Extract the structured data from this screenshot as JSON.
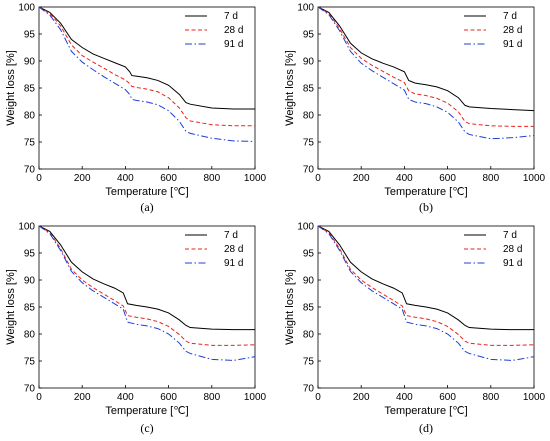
{
  "chart_data": [
    {
      "type": "line",
      "panel_label": "(a)",
      "xlabel": "Temperature [℃]",
      "ylabel": "Weight loss [%]",
      "xlim": [
        0,
        1000
      ],
      "ylim": [
        70,
        100
      ],
      "xticks": [
        0,
        200,
        400,
        600,
        800,
        1000
      ],
      "yticks": [
        70,
        75,
        80,
        85,
        90,
        95,
        100
      ],
      "legend_position": "top-right",
      "series": [
        {
          "name": "7 d",
          "color": "#000000",
          "dash": "solid",
          "x": [
            0,
            50,
            100,
            150,
            200,
            250,
            300,
            350,
            400,
            420,
            430,
            450,
            500,
            550,
            600,
            650,
            680,
            700,
            800,
            900,
            1000
          ],
          "y": [
            100,
            99,
            97,
            94,
            92.5,
            91.3,
            90.5,
            89.7,
            88.9,
            88.0,
            87.3,
            87.2,
            86.9,
            86.4,
            85.5,
            83.8,
            82.3,
            82.0,
            81.3,
            81.1,
            81.1
          ]
        },
        {
          "name": "28 d",
          "color": "#e8231d",
          "dash": "dashed",
          "x": [
            0,
            50,
            100,
            150,
            200,
            250,
            300,
            350,
            400,
            420,
            430,
            450,
            500,
            550,
            600,
            650,
            680,
            700,
            800,
            900,
            1000
          ],
          "y": [
            100,
            98.8,
            96.5,
            93.0,
            91.0,
            89.8,
            88.7,
            87.5,
            86.5,
            85.8,
            85.3,
            85.1,
            84.8,
            84.3,
            83.2,
            81.3,
            79.5,
            78.9,
            78.2,
            78.0,
            78.0
          ]
        },
        {
          "name": "91 d",
          "color": "#1f3fd6",
          "dash": "dashdot",
          "x": [
            0,
            50,
            100,
            150,
            200,
            250,
            300,
            350,
            400,
            420,
            430,
            450,
            500,
            550,
            600,
            650,
            680,
            700,
            800,
            900,
            1000
          ],
          "y": [
            100,
            98.5,
            95.8,
            91.8,
            89.8,
            88.4,
            87.1,
            85.9,
            84.7,
            83.8,
            82.9,
            82.7,
            82.4,
            81.9,
            80.8,
            78.8,
            77.0,
            76.6,
            75.7,
            75.2,
            75.1
          ]
        }
      ]
    },
    {
      "type": "line",
      "panel_label": "(b)",
      "xlabel": "Temperature [℃]",
      "ylabel": "Weight loss [%]",
      "xlim": [
        0,
        1000
      ],
      "ylim": [
        70,
        100
      ],
      "xticks": [
        0,
        200,
        400,
        600,
        800,
        1000
      ],
      "yticks": [
        70,
        75,
        80,
        85,
        90,
        95,
        100
      ],
      "legend_position": "top-right",
      "series": [
        {
          "name": "7 d",
          "color": "#000000",
          "dash": "solid",
          "x": [
            0,
            50,
            100,
            150,
            200,
            250,
            300,
            350,
            400,
            420,
            450,
            500,
            550,
            600,
            650,
            680,
            700,
            800,
            900,
            1000
          ],
          "y": [
            100,
            99,
            96.5,
            93.3,
            91.5,
            90.4,
            89.6,
            88.9,
            88.0,
            86.4,
            85.9,
            85.6,
            85.2,
            84.5,
            83.2,
            81.8,
            81.5,
            81.2,
            81.0,
            80.8
          ]
        },
        {
          "name": "28 d",
          "color": "#e8231d",
          "dash": "dashed",
          "x": [
            0,
            50,
            100,
            150,
            200,
            250,
            300,
            350,
            400,
            420,
            450,
            500,
            550,
            600,
            650,
            680,
            700,
            800,
            900,
            1000
          ],
          "y": [
            100,
            98.8,
            96.0,
            92.5,
            90.5,
            89.2,
            88.1,
            87.0,
            86.0,
            84.5,
            83.9,
            83.6,
            83.1,
            82.2,
            80.6,
            78.8,
            78.4,
            78.0,
            77.9,
            77.9
          ]
        },
        {
          "name": "91 d",
          "color": "#1f3fd6",
          "dash": "dashdot",
          "x": [
            0,
            50,
            100,
            150,
            200,
            250,
            300,
            350,
            400,
            420,
            450,
            500,
            550,
            600,
            650,
            680,
            700,
            800,
            900,
            1000
          ],
          "y": [
            100,
            98.6,
            95.6,
            91.8,
            89.6,
            88.2,
            87.0,
            85.8,
            84.6,
            82.9,
            82.4,
            82.1,
            81.5,
            80.5,
            78.7,
            76.9,
            76.4,
            75.6,
            75.8,
            76.2
          ]
        }
      ]
    },
    {
      "type": "line",
      "panel_label": "(c)",
      "xlabel": "Temperature [℃]",
      "ylabel": "Weight loss [%]",
      "xlim": [
        0,
        1000
      ],
      "ylim": [
        70,
        100
      ],
      "xticks": [
        0,
        200,
        400,
        600,
        800,
        1000
      ],
      "yticks": [
        70,
        75,
        80,
        85,
        90,
        95,
        100
      ],
      "legend_position": "top-right",
      "series": [
        {
          "name": "7 d",
          "color": "#000000",
          "dash": "solid",
          "x": [
            0,
            50,
            100,
            150,
            200,
            250,
            300,
            350,
            390,
            410,
            450,
            500,
            550,
            600,
            650,
            680,
            700,
            800,
            900,
            1000
          ],
          "y": [
            100,
            99,
            96.5,
            93.3,
            91.5,
            90.2,
            89.3,
            88.5,
            87.6,
            85.6,
            85.3,
            85.0,
            84.6,
            83.9,
            82.6,
            81.6,
            81.2,
            80.9,
            80.8,
            80.8
          ]
        },
        {
          "name": "28 d",
          "color": "#e8231d",
          "dash": "dashed",
          "x": [
            0,
            50,
            100,
            150,
            200,
            250,
            300,
            350,
            390,
            410,
            450,
            500,
            550,
            600,
            650,
            680,
            700,
            800,
            900,
            1000
          ],
          "y": [
            100,
            98.8,
            95.8,
            92.0,
            90.0,
            88.6,
            87.4,
            86.2,
            85.2,
            83.4,
            83.1,
            82.8,
            82.3,
            81.4,
            79.9,
            78.7,
            78.3,
            77.9,
            77.9,
            78.0
          ]
        },
        {
          "name": "91 d",
          "color": "#1f3fd6",
          "dash": "dashdot",
          "x": [
            0,
            50,
            100,
            150,
            200,
            250,
            300,
            350,
            390,
            410,
            450,
            500,
            550,
            600,
            650,
            680,
            700,
            800,
            900,
            1000
          ],
          "y": [
            100,
            98.6,
            95.5,
            91.6,
            89.5,
            88.0,
            86.8,
            85.6,
            84.6,
            82.2,
            81.8,
            81.5,
            81.0,
            80.0,
            78.3,
            76.8,
            76.4,
            75.3,
            75.1,
            75.8
          ]
        }
      ]
    },
    {
      "type": "line",
      "panel_label": "(d)",
      "xlabel": "Temperature [℃]",
      "ylabel": "Weight loss [%]",
      "xlim": [
        0,
        1000
      ],
      "ylim": [
        70,
        100
      ],
      "xticks": [
        0,
        200,
        400,
        600,
        800,
        1000
      ],
      "yticks": [
        70,
        75,
        80,
        85,
        90,
        95,
        100
      ],
      "legend_position": "top-right",
      "series": [
        {
          "name": "7 d",
          "color": "#000000",
          "dash": "solid",
          "x": [
            0,
            50,
            100,
            150,
            200,
            250,
            300,
            350,
            390,
            410,
            450,
            500,
            550,
            600,
            650,
            680,
            700,
            800,
            900,
            1000
          ],
          "y": [
            100,
            99,
            96.5,
            93.3,
            91.5,
            90.2,
            89.3,
            88.5,
            87.6,
            85.6,
            85.3,
            85.0,
            84.6,
            83.9,
            82.6,
            81.6,
            81.2,
            80.9,
            80.8,
            80.8
          ]
        },
        {
          "name": "28 d",
          "color": "#e8231d",
          "dash": "dashed",
          "x": [
            0,
            50,
            100,
            150,
            200,
            250,
            300,
            350,
            390,
            410,
            450,
            500,
            550,
            600,
            650,
            680,
            700,
            800,
            900,
            1000
          ],
          "y": [
            100,
            98.8,
            95.8,
            92.0,
            90.0,
            88.6,
            87.4,
            86.2,
            85.2,
            83.4,
            83.1,
            82.8,
            82.3,
            81.4,
            79.9,
            78.7,
            78.3,
            77.9,
            77.9,
            78.0
          ]
        },
        {
          "name": "91 d",
          "color": "#1f3fd6",
          "dash": "dashdot",
          "x": [
            0,
            50,
            100,
            150,
            200,
            250,
            300,
            350,
            390,
            410,
            450,
            500,
            550,
            600,
            650,
            680,
            700,
            800,
            900,
            1000
          ],
          "y": [
            100,
            98.6,
            95.5,
            91.6,
            89.5,
            88.0,
            86.8,
            85.6,
            84.6,
            82.2,
            81.8,
            81.5,
            81.0,
            80.0,
            78.3,
            76.8,
            76.4,
            75.3,
            75.1,
            75.8
          ]
        }
      ]
    }
  ]
}
